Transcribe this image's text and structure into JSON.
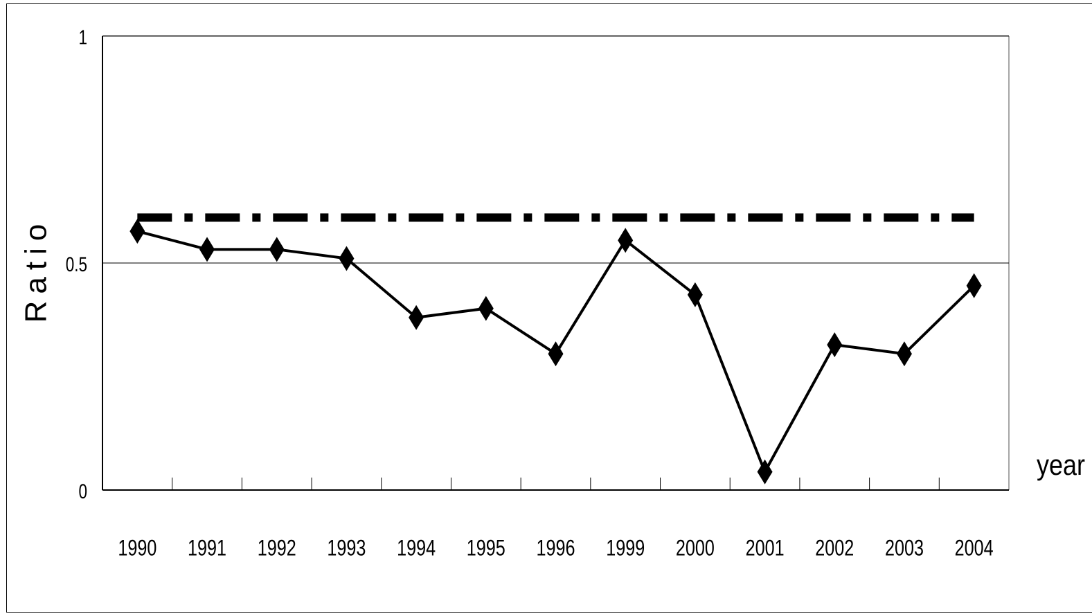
{
  "chart_data": {
    "type": "line",
    "y_label": "Ratio",
    "x_label": "year",
    "categories": [
      "1990",
      "1991",
      "1992",
      "1993",
      "1994",
      "1995",
      "1996",
      "1999",
      "2000",
      "2001",
      "2002",
      "2003",
      "2004"
    ],
    "series": [
      {
        "color": "#000000",
        "marker": "diamond",
        "dash": "solid",
        "values": [
          0.57,
          0.53,
          0.53,
          0.51,
          0.38,
          0.4,
          0.3,
          0.55,
          0.43,
          0.04,
          0.32,
          0.3,
          0.45
        ]
      },
      {
        "color": "#000000",
        "marker": "none",
        "dash": "dashdot",
        "values": [
          0.6,
          0.6,
          0.6,
          0.6,
          0.6,
          0.6,
          0.6,
          0.6,
          0.6,
          0.6,
          0.6,
          0.6,
          0.6
        ]
      }
    ],
    "ylim": [
      0,
      1
    ],
    "yticks": [
      0,
      0.5,
      1
    ],
    "grid": true
  }
}
